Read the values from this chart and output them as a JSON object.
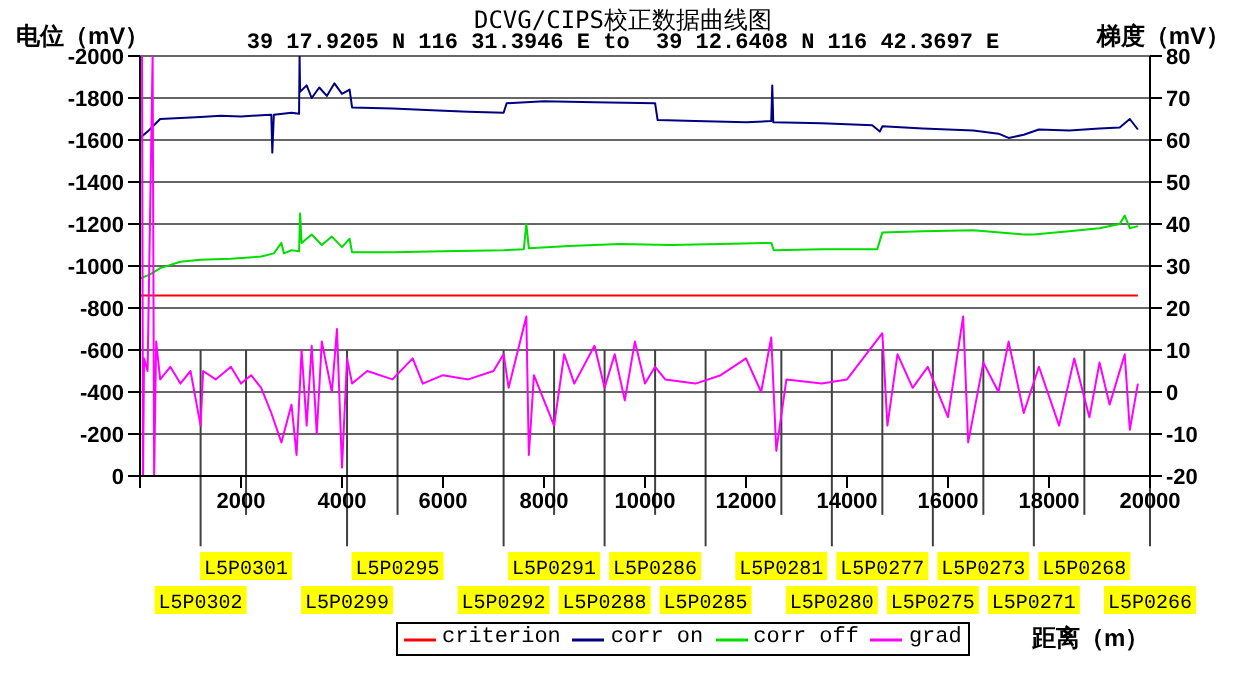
{
  "chart_data": {
    "type": "line",
    "title": "DCVG/CIPS校正数据曲线图",
    "subtitle": "39 17.9205 N 116 31.3946 E to  39 12.6408 N 116 42.3697 E",
    "xlabel": "距离（m）",
    "ylabel": "电位（mV）",
    "y2label": "梯度（mV）",
    "xlim": [
      0,
      20000
    ],
    "xticks": [
      {
        "value": 0,
        "label": null
      },
      2000,
      4000,
      6000,
      8000,
      10000,
      12000,
      14000,
      16000,
      18000,
      20000
    ],
    "ylim": [
      0,
      -2000
    ],
    "yticks": [
      -2000,
      -1800,
      -1600,
      -1400,
      -1200,
      -1000,
      -800,
      -600,
      -400,
      -200,
      0
    ],
    "y2lim": [
      -20,
      80
    ],
    "y2ticks": [
      80,
      70,
      60,
      50,
      40,
      30,
      20,
      10,
      0,
      -10,
      -20
    ],
    "grid": "y",
    "legend": "bottom",
    "marker": "none",
    "line_style": "solid",
    "series": [
      {
        "name": "criterion",
        "color": "#ff0000",
        "x": [
          0,
          19760
        ],
        "values": [
          -860,
          -860
        ]
      },
      {
        "name": "corr on",
        "color": "#000080",
        "x": [
          0,
          150,
          400,
          800,
          1200,
          1600,
          2000,
          2400,
          2600,
          2620,
          2650,
          3000,
          3150,
          3160,
          3170,
          3300,
          3400,
          3550,
          3700,
          3850,
          4000,
          4150,
          4200,
          5000,
          5900,
          6500,
          7200,
          7260,
          8000,
          9000,
          10200,
          10250,
          11000,
          12000,
          12500,
          12520,
          12540,
          13500,
          14500,
          14650,
          14700,
          15500,
          16500,
          17000,
          17200,
          17500,
          17800,
          18400,
          19000,
          19400,
          19600,
          19760
        ],
        "values": [
          -1610,
          -1640,
          -1700,
          -1705,
          -1710,
          -1715,
          -1712,
          -1718,
          -1720,
          -1540,
          -1720,
          -1730,
          -1725,
          -2000,
          -1830,
          -1860,
          -1800,
          -1850,
          -1810,
          -1870,
          -1820,
          -1840,
          -1755,
          -1750,
          -1740,
          -1735,
          -1730,
          -1775,
          -1785,
          -1780,
          -1775,
          -1695,
          -1690,
          -1685,
          -1690,
          -1860,
          -1685,
          -1680,
          -1670,
          -1640,
          -1665,
          -1655,
          -1645,
          -1630,
          -1610,
          -1625,
          -1650,
          -1645,
          -1655,
          -1660,
          -1700,
          -1650
        ]
      },
      {
        "name": "corr off",
        "color": "#00dd00",
        "x": [
          0,
          200,
          400,
          800,
          1200,
          1800,
          2400,
          2650,
          2800,
          2850,
          3000,
          3150,
          3170,
          3200,
          3400,
          3600,
          3800,
          4000,
          4150,
          4200,
          5000,
          6000,
          7200,
          7600,
          7650,
          7700,
          8500,
          9500,
          10500,
          11500,
          12500,
          12550,
          13500,
          14600,
          14700,
          15500,
          16500,
          17500,
          17700,
          18400,
          19000,
          19400,
          19500,
          19600,
          19760
        ],
        "values": [
          -940,
          -960,
          -990,
          -1020,
          -1030,
          -1035,
          -1045,
          -1060,
          -1110,
          -1060,
          -1075,
          -1070,
          -1250,
          -1110,
          -1150,
          -1100,
          -1140,
          -1090,
          -1130,
          -1065,
          -1065,
          -1070,
          -1075,
          -1080,
          -1200,
          -1085,
          -1095,
          -1105,
          -1100,
          -1105,
          -1110,
          -1075,
          -1080,
          -1080,
          -1160,
          -1165,
          -1170,
          -1150,
          -1150,
          -1165,
          -1180,
          -1200,
          -1240,
          -1180,
          -1190
        ]
      },
      {
        "name": "grad",
        "color": "#ff00ff",
        "axis": "y2",
        "x": [
          40,
          60,
          80,
          150,
          250,
          280,
          320,
          400,
          600,
          800,
          1000,
          1200,
          1250,
          1500,
          1800,
          2000,
          2200,
          2400,
          2600,
          2800,
          3000,
          3100,
          3200,
          3300,
          3400,
          3500,
          3600,
          3800,
          3900,
          4000,
          4100,
          4200,
          4500,
          5000,
          5400,
          5600,
          6000,
          6500,
          7000,
          7200,
          7300,
          7650,
          7700,
          7800,
          8200,
          8400,
          8600,
          9000,
          9200,
          9400,
          9600,
          9800,
          10000,
          10200,
          10400,
          11000,
          11500,
          12000,
          12300,
          12500,
          12600,
          12800,
          13500,
          14000,
          14700,
          14800,
          15000,
          15300,
          15600,
          16000,
          16300,
          16400,
          16700,
          17000,
          17200,
          17500,
          17800,
          18200,
          18500,
          18800,
          19000,
          19200,
          19500,
          19600,
          19760
        ],
        "values": [
          80,
          -20,
          8,
          5,
          80,
          -20,
          12,
          3,
          6,
          2,
          5,
          -8,
          5,
          3,
          6,
          2,
          4,
          1,
          -5,
          -12,
          -3,
          -15,
          10,
          -8,
          11,
          -10,
          12,
          0,
          15,
          -18,
          8,
          2,
          5,
          3,
          8,
          2,
          4,
          3,
          5,
          9,
          1,
          18,
          -15,
          4,
          -8,
          9,
          2,
          11,
          1,
          9,
          -2,
          12,
          2,
          6,
          3,
          2,
          4,
          8,
          0,
          13,
          -14,
          3,
          2,
          3,
          14,
          -8,
          9,
          1,
          6,
          -6,
          18,
          -12,
          7,
          0,
          12,
          -5,
          6,
          -8,
          8,
          -6,
          7,
          -3,
          9,
          -9,
          2
        ]
      }
    ],
    "ref_lines": [
      {
        "axis": "x",
        "value": 1200,
        "label": "L5P0302",
        "color": "#404040"
      },
      {
        "axis": "x",
        "value": 2100,
        "label": "L5P0301",
        "color": "#404040"
      },
      {
        "axis": "x",
        "value": 4100,
        "label": "L5P0299",
        "color": "#404040"
      },
      {
        "axis": "x",
        "value": 5100,
        "label": "L5P0295",
        "color": "#404040"
      },
      {
        "axis": "x",
        "value": 7200,
        "label": "L5P0292",
        "color": "#404040"
      },
      {
        "axis": "x",
        "value": 8200,
        "label": "L5P0291",
        "color": "#404040"
      },
      {
        "axis": "x",
        "value": 9200,
        "label": "L5P0288",
        "color": "#404040"
      },
      {
        "axis": "x",
        "value": 10200,
        "label": "L5P0286",
        "color": "#404040"
      },
      {
        "axis": "x",
        "value": 11200,
        "label": "L5P0285",
        "color": "#404040"
      },
      {
        "axis": "x",
        "value": 12700,
        "label": "L5P0281",
        "color": "#404040"
      },
      {
        "axis": "x",
        "value": 13700,
        "label": "L5P0280",
        "color": "#404040"
      },
      {
        "axis": "x",
        "value": 14700,
        "label": "L5P0277",
        "color": "#404040"
      },
      {
        "axis": "x",
        "value": 15700,
        "label": "L5P0275",
        "color": "#404040"
      },
      {
        "axis": "x",
        "value": 16700,
        "label": "L5P0273",
        "color": "#404040"
      },
      {
        "axis": "x",
        "value": 17700,
        "label": "L5P0271",
        "color": "#404040"
      },
      {
        "axis": "x",
        "value": 18700,
        "label": "L5P0268",
        "color": "#404040"
      },
      {
        "axis": "x",
        "value": 20000,
        "label": "L5P0266",
        "color": "#404040"
      }
    ]
  }
}
